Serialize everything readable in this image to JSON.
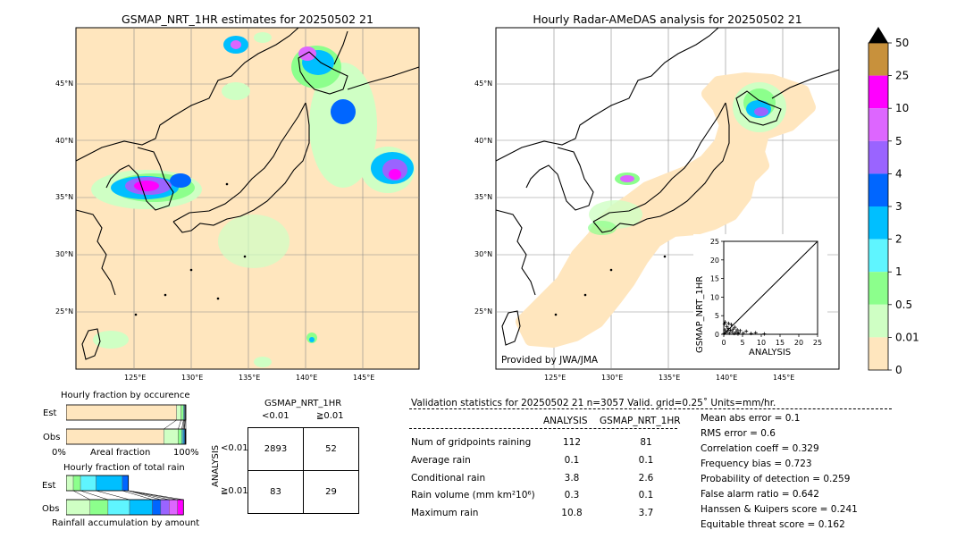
{
  "left_map": {
    "title": "GSMAP_NRT_1HR estimates for 20250502 21",
    "lat_labels": [
      "45°N",
      "40°N",
      "35°N",
      "30°N",
      "25°N"
    ],
    "lon_labels": [
      "125°E",
      "130°E",
      "135°E",
      "140°E",
      "145°E"
    ]
  },
  "right_map": {
    "title": "Hourly Radar-AMeDAS analysis for 20250502 21",
    "lat_labels": [
      "45°N",
      "40°N",
      "35°N",
      "30°N",
      "25°N"
    ],
    "lon_labels": [
      "125°E",
      "130°E",
      "135°E",
      "140°E",
      "145°E"
    ],
    "credit": "Provided by JWA/JMA"
  },
  "colorbar": {
    "labels": [
      "50",
      "25",
      "10",
      "5",
      "4",
      "3",
      "2",
      "1",
      "0.5",
      "0.01",
      "0"
    ],
    "colors": [
      "#c8913c",
      "#ff00ff",
      "#dd66ff",
      "#9a64ff",
      "#0066ff",
      "#00bfff",
      "#5ff5ff",
      "#8cff8c",
      "#cfffc4",
      "#ffe6be"
    ],
    "overflow_color": "#000000"
  },
  "chart_data": [
    {
      "type": "scatter",
      "title": "",
      "xlabel": "ANALYSIS",
      "ylabel": "GSMAP_NRT_1HR",
      "xlim": [
        0,
        25
      ],
      "ylim": [
        0,
        25
      ],
      "xticks": [
        "0",
        "5",
        "10",
        "15",
        "20",
        "25"
      ],
      "yticks": [
        "0",
        "5",
        "10",
        "15",
        "20",
        "25"
      ],
      "points": [
        [
          0.1,
          0.2
        ],
        [
          0.3,
          1.2
        ],
        [
          0.5,
          0.4
        ],
        [
          0.8,
          2.1
        ],
        [
          1.0,
          0.9
        ],
        [
          1.2,
          1.6
        ],
        [
          1.5,
          0.3
        ],
        [
          1.8,
          1.1
        ],
        [
          2.0,
          2.6
        ],
        [
          2.2,
          0.7
        ],
        [
          2.5,
          1.4
        ],
        [
          2.8,
          0.2
        ],
        [
          3.0,
          1.9
        ],
        [
          3.3,
          0.6
        ],
        [
          3.6,
          1.2
        ],
        [
          4.0,
          0.4
        ],
        [
          4.4,
          1.0
        ],
        [
          5.2,
          0.3
        ],
        [
          6.0,
          0.8
        ],
        [
          7.3,
          0.2
        ],
        [
          0.4,
          3.3
        ],
        [
          0.2,
          2.8
        ],
        [
          1.3,
          2.9
        ],
        [
          3.8,
          0.1
        ],
        [
          8.5,
          0.4
        ],
        [
          10.8,
          0.1
        ]
      ]
    },
    {
      "type": "bar",
      "title": "Hourly fraction by occurence",
      "categories": [
        "Est",
        "Obs"
      ],
      "xlabel": "Areal fraction",
      "xticks": [
        "0%",
        "100%"
      ],
      "series": [
        {
          "color": "#ffe6be",
          "values": [
            0.922,
            0.816
          ]
        },
        {
          "color": "#cfffc4",
          "values": [
            0.038,
            0.12
          ]
        },
        {
          "color": "#8cff8c",
          "values": [
            0.02,
            0.03
          ]
        },
        {
          "color": "#5ff5ff",
          "values": [
            0.006,
            0.01
          ]
        },
        {
          "color": "#00bfff",
          "values": [
            0.005,
            0.008
          ]
        },
        {
          "color": "#0066ff",
          "values": [
            0.004,
            0.006
          ]
        },
        {
          "color": "#000000",
          "values": [
            0.005,
            0.01
          ]
        }
      ]
    },
    {
      "type": "bar",
      "title": "Hourly fraction of total rain",
      "categories": [
        "Est",
        "Obs"
      ],
      "xlabel": "Rainfall accumulation by amount",
      "series": [
        {
          "color": "#cfffc4",
          "values": [
            0.06,
            0.2
          ]
        },
        {
          "color": "#8cff8c",
          "values": [
            0.06,
            0.15
          ]
        },
        {
          "color": "#5ff5ff",
          "values": [
            0.13,
            0.18
          ]
        },
        {
          "color": "#00bfff",
          "values": [
            0.22,
            0.19
          ]
        },
        {
          "color": "#0066ff",
          "values": [
            0.05,
            0.07
          ]
        },
        {
          "color": "#9a64ff",
          "values": [
            0.0,
            0.07
          ]
        },
        {
          "color": "#dd66ff",
          "values": [
            0.0,
            0.07
          ]
        },
        {
          "color": "#ff00ff",
          "values": [
            0.0,
            0.05
          ]
        }
      ]
    },
    {
      "type": "table",
      "title": "GSMAP_NRT_1HR",
      "col_headers": [
        "<0.01",
        "≧0.01"
      ],
      "row_axis_label": "ANALYSIS",
      "row_headers": [
        "<0.01",
        "≧0.01"
      ],
      "cells": [
        [
          "2893",
          "52"
        ],
        [
          "83",
          "29"
        ]
      ]
    }
  ],
  "validation": {
    "header": "Validation statistics for 20250502 21  n=3057 Valid. grid=0.25˚ Units=mm/hr.",
    "col_analysis": "ANALYSIS",
    "col_gsmap": "GSMAP_NRT_1HR",
    "rows": [
      {
        "label": "Num of gridpoints raining",
        "a": "112",
        "g": "81"
      },
      {
        "label": "Average rain",
        "a": "0.1",
        "g": "0.1"
      },
      {
        "label": "Conditional rain",
        "a": "3.8",
        "g": "2.6"
      },
      {
        "label": "Rain volume (mm km²10⁶)",
        "a": "0.3",
        "g": "0.1"
      },
      {
        "label": "Maximum rain",
        "a": "10.8",
        "g": "3.7"
      }
    ],
    "scores": [
      "Mean abs error =    0.1",
      "RMS error =    0.6",
      "Correlation coeff =  0.329",
      "Frequency bias =  0.723",
      "Probability of detection =  0.259",
      "False alarm ratio =  0.642",
      "Hanssen & Kuipers score =  0.241",
      "Equitable threat score =  0.162"
    ]
  }
}
